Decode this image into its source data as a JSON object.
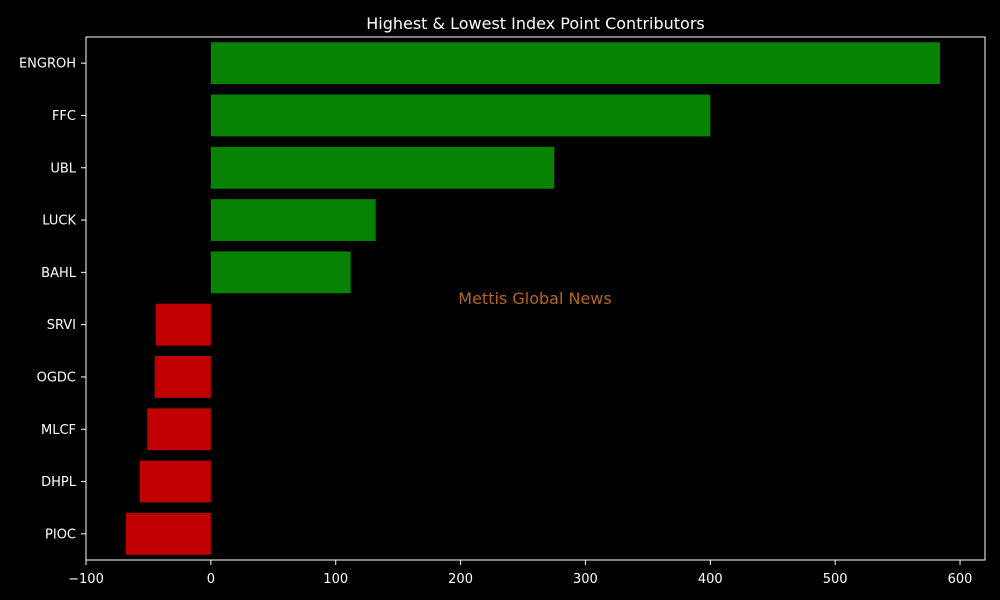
{
  "chart_data": {
    "type": "bar",
    "orientation": "horizontal",
    "title": "Highest & Lowest Index Point Contributors",
    "xlabel": "",
    "ylabel": "",
    "categories": [
      "ENGROH",
      "FFC",
      "UBL",
      "LUCK",
      "BAHL",
      "SRVI",
      "OGDC",
      "MLCF",
      "DHPL",
      "PIOC"
    ],
    "values": [
      584,
      400,
      275,
      132,
      112,
      -44,
      -45,
      -51,
      -57,
      -68
    ],
    "xlim": [
      -100,
      620
    ],
    "xticks": [
      -100,
      0,
      100,
      200,
      300,
      400,
      500,
      600
    ],
    "grid": false,
    "positive_color": "#078203",
    "negative_color": "#c00000",
    "watermark": {
      "text": "Mettis Global News",
      "color": "#b5651d"
    }
  }
}
